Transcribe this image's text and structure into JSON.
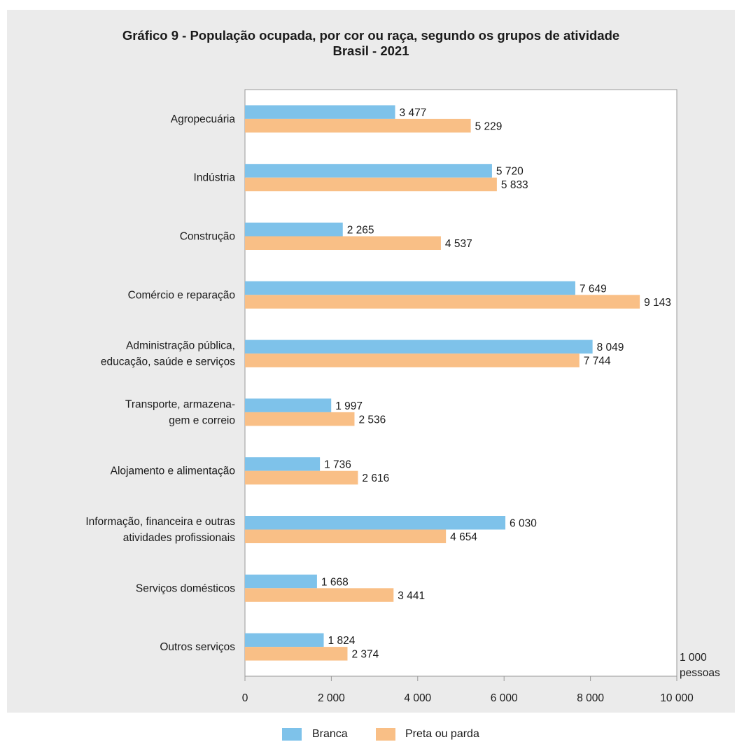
{
  "chart_data": {
    "type": "bar",
    "orientation": "horizontal",
    "title": "Gráfico 9 - População ocupada, por cor ou raça, segundo os grupos de atividade",
    "subtitle": "Brasil - 2021",
    "unit_label": [
      "1 000",
      "pessoas"
    ],
    "categories": [
      [
        "Agropecuária"
      ],
      [
        "Indústria"
      ],
      [
        "Construção"
      ],
      [
        "Comércio e reparação"
      ],
      [
        "Administração pública,",
        "educação, saúde e serviços"
      ],
      [
        "Transporte, armazena-",
        "gem e correio"
      ],
      [
        "Alojamento e alimentação"
      ],
      [
        "Informação, financeira e outras",
        "atividades profissionais"
      ],
      [
        "Serviços domésticos"
      ],
      [
        "Outros serviços"
      ]
    ],
    "series": [
      {
        "name": "Branca",
        "color": "#7ec2ea",
        "values": [
          3477,
          5720,
          2265,
          7649,
          8049,
          1997,
          1736,
          6030,
          1668,
          1824
        ],
        "labels": [
          "3 477",
          "5 720",
          "2 265",
          "7 649",
          "8 049",
          "1 997",
          "1 736",
          "6 030",
          "1 668",
          "1 824"
        ]
      },
      {
        "name": "Preta ou parda",
        "color": "#f9bf86",
        "values": [
          5229,
          5833,
          4537,
          9143,
          7744,
          2536,
          2616,
          4654,
          3441,
          2374
        ],
        "labels": [
          "5 229",
          "5 833",
          "4 537",
          "9 143",
          "7 744",
          "2 536",
          "2 616",
          "4 654",
          "3 441",
          "2 374"
        ]
      }
    ],
    "xlim": [
      0,
      10000
    ],
    "xticks": [
      0,
      2000,
      4000,
      6000,
      8000,
      10000
    ],
    "xtick_labels": [
      "0",
      "2 000",
      "4 000",
      "6 000",
      "8 000",
      "10 000"
    ],
    "grid": false,
    "legend_position": "bottom-center"
  }
}
